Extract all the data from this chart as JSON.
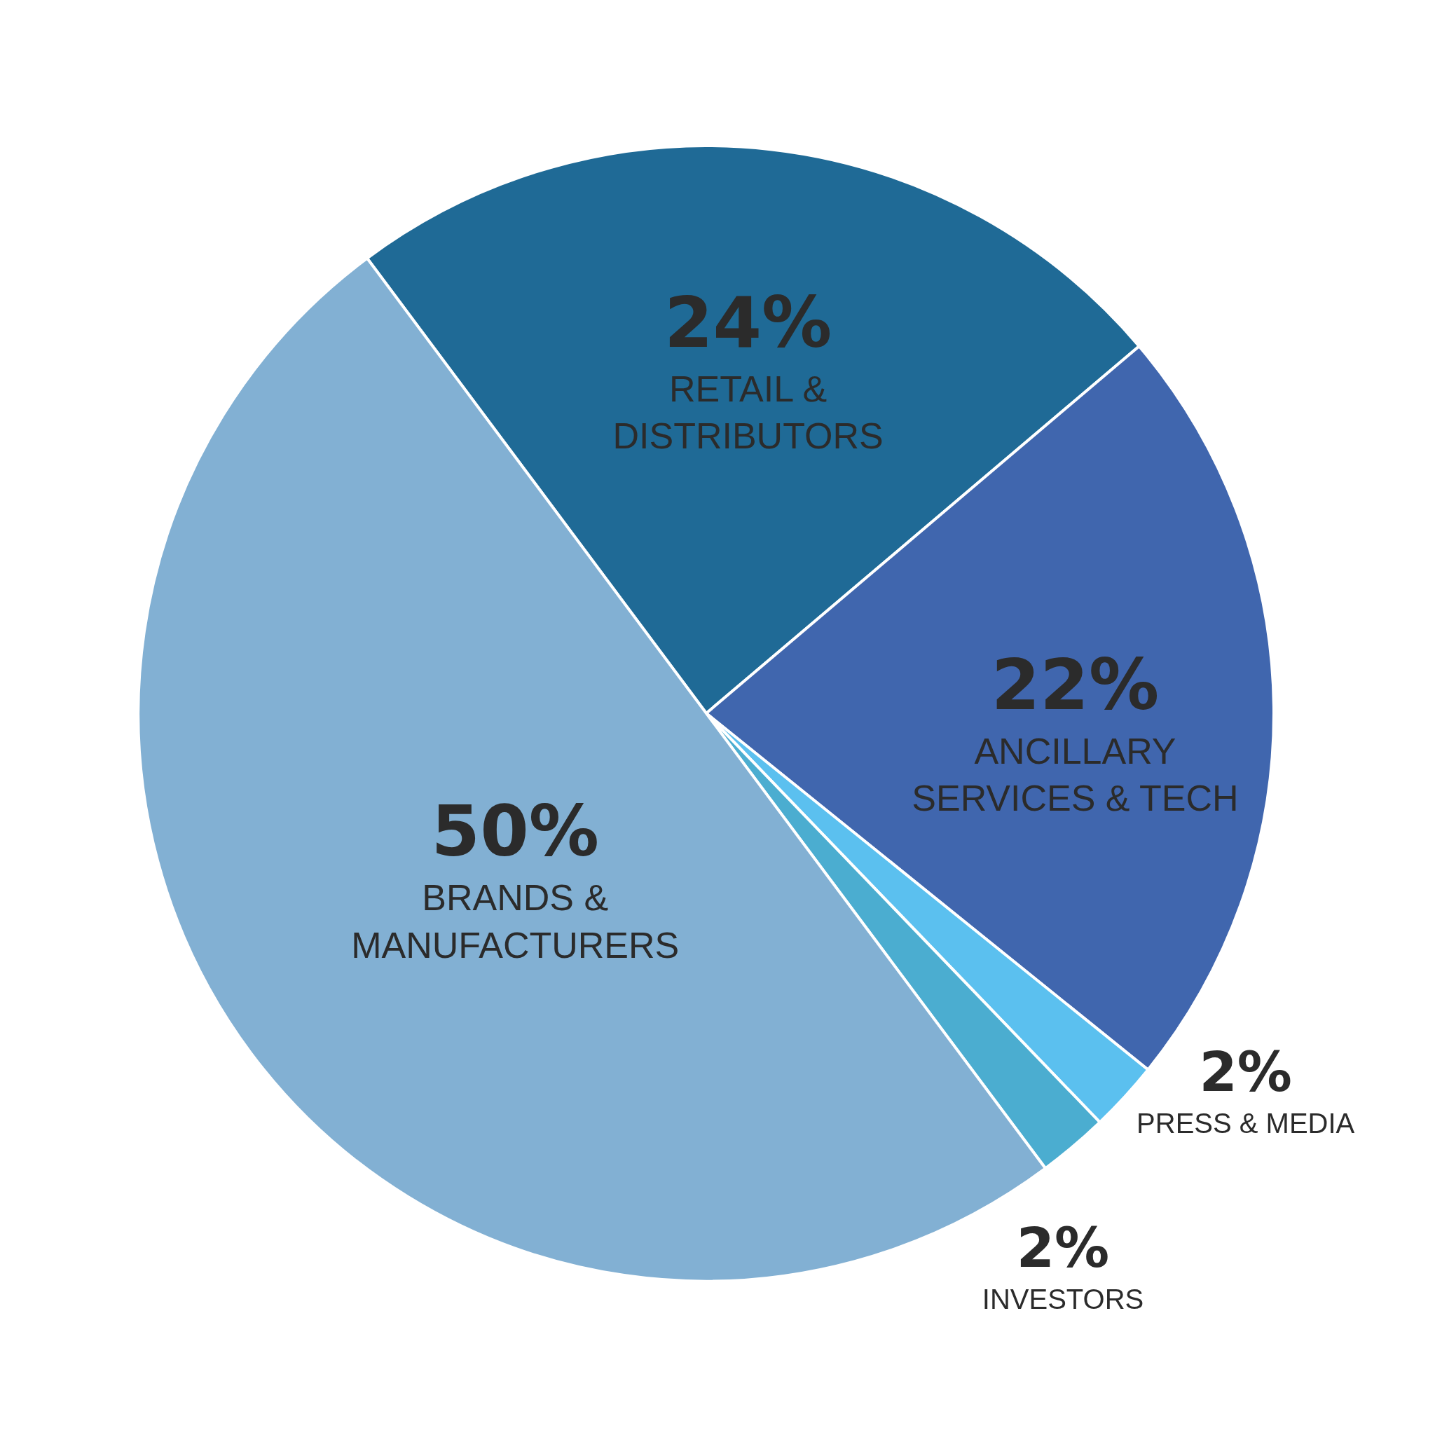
{
  "chart_data": {
    "type": "pie",
    "categories": [
      "RETAIL & DISTRIBUTORS",
      "ANCILLARY SERVICES & TECH",
      "PRESS & MEDIA",
      "INVESTORS",
      "BRANDS & MANUFACTURERS"
    ],
    "values": [
      24,
      22,
      2,
      2,
      50
    ],
    "colors": [
      "#1f6a96",
      "#4066ae",
      "#5bc0ef",
      "#4badd0",
      "#82b0d3"
    ],
    "value_labels": [
      "24%",
      "22%",
      "2%",
      "2%",
      "50%"
    ]
  }
}
